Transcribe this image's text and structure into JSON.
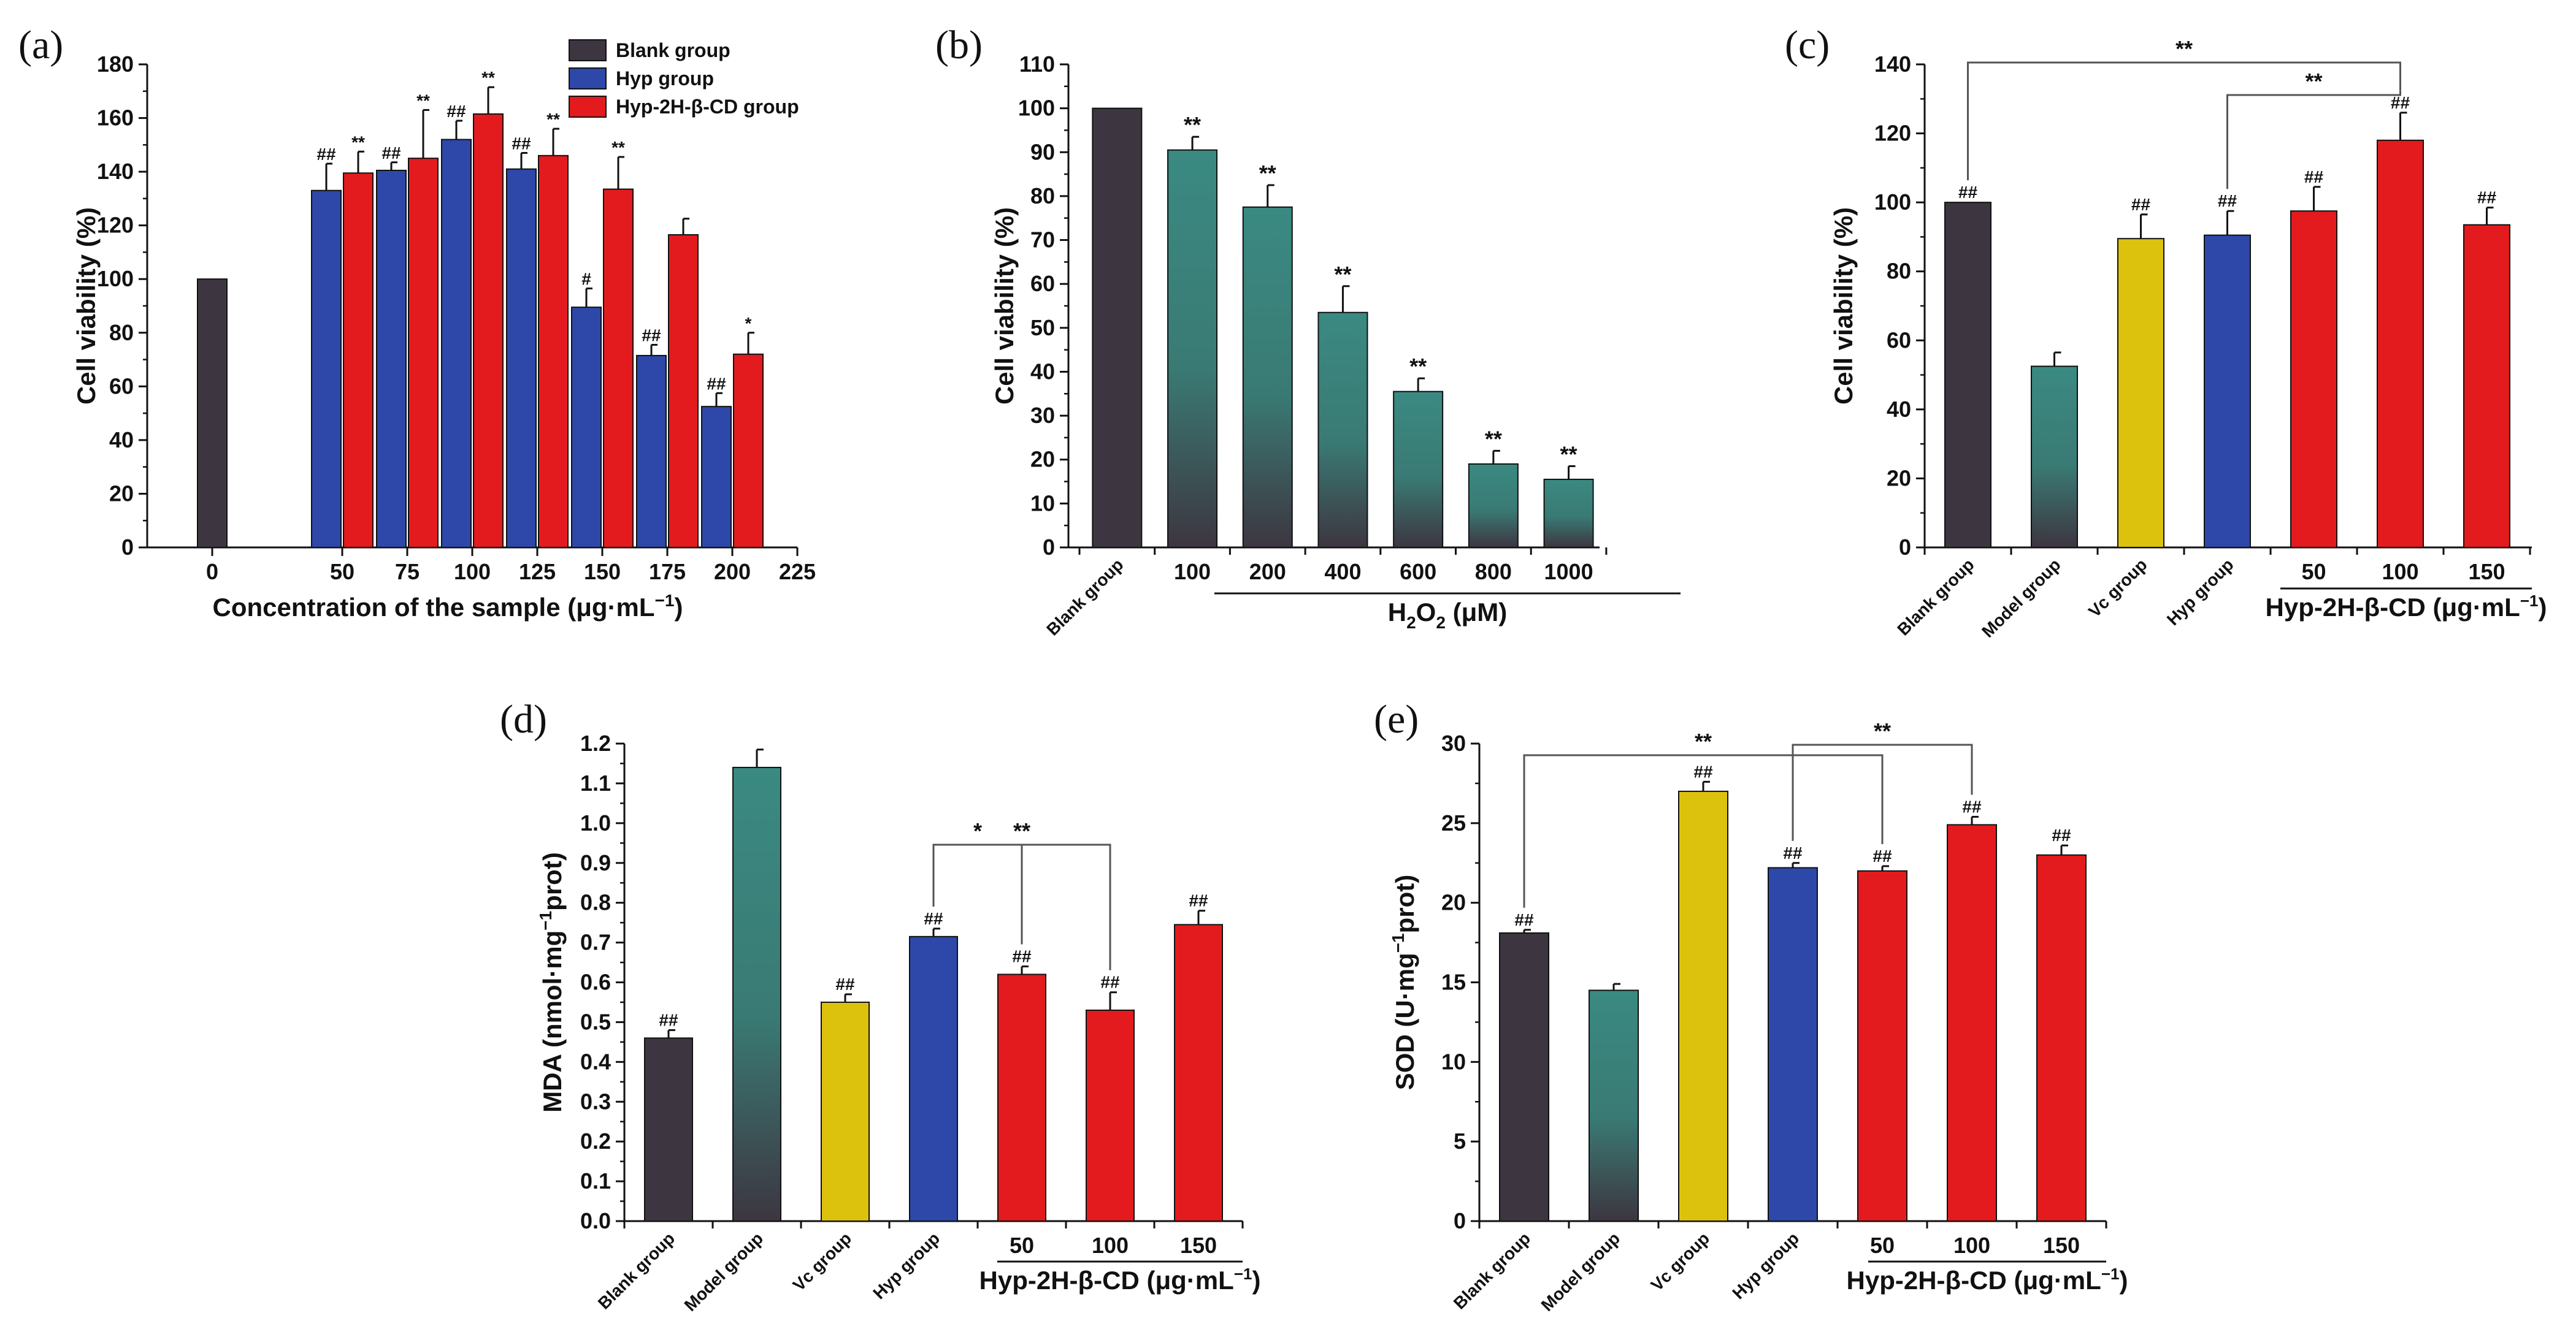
{
  "colors": {
    "blank": "#3d3640",
    "hyp": "#2d48a8",
    "hypcd": "#e31b1e",
    "vc": "#ddc20d",
    "teal_top": "#3a8a82",
    "teal_bottom": "#3d3640"
  },
  "chart_data": [
    {
      "id": "a",
      "panel_label": "(a)",
      "type": "bar",
      "title": "",
      "xlabel": "Concentration of the sample (μg·mL",
      "xlabel_sup": "−1",
      "xlabel_end": ")",
      "ylabel": "Cell viability (%)",
      "ylim": [
        0,
        180
      ],
      "yticks": [
        "0",
        "20",
        "40",
        "60",
        "80",
        "100",
        "120",
        "140",
        "160",
        "180"
      ],
      "xlim": [
        -25,
        225
      ],
      "xticks": [
        "0",
        "50",
        "75",
        "100",
        "125",
        "150",
        "175",
        "200",
        "225"
      ],
      "legend": [
        "Blank group",
        "Hyp group",
        "Hyp-2H-β-CD group"
      ],
      "series": [
        {
          "name": "Blank group",
          "x": [
            0
          ],
          "values": [
            100
          ],
          "errors": [
            0
          ],
          "sig": [
            ""
          ]
        },
        {
          "name": "Hyp group",
          "x": [
            50,
            75,
            100,
            125,
            150,
            175,
            200
          ],
          "values": [
            133,
            140.5,
            152,
            141,
            89.5,
            71.5,
            52.5
          ],
          "errors": [
            10,
            3,
            7,
            6,
            7,
            4,
            5
          ],
          "sig": [
            "##",
            "##",
            "##",
            "##",
            "#",
            "##",
            "##"
          ]
        },
        {
          "name": "Hyp-2H-β-CD group",
          "x": [
            50,
            75,
            100,
            125,
            150,
            175,
            200
          ],
          "values": [
            139.5,
            145,
            161.5,
            146,
            133.5,
            116.5,
            72
          ],
          "errors": [
            8,
            18,
            10,
            10,
            12,
            6,
            8
          ],
          "sig": [
            "**",
            "**",
            "**",
            "**",
            "**",
            "",
            "*"
          ]
        }
      ]
    },
    {
      "id": "b",
      "panel_label": "(b)",
      "type": "bar",
      "title": "",
      "xlabel": "H",
      "xlabel_sub": "2",
      "xlabel_mid": "O",
      "xlabel_sub2": "2",
      "xlabel_end": " (μM)",
      "ylabel": "Cell viability (%)",
      "ylim": [
        0,
        110
      ],
      "yticks": [
        "0",
        "10",
        "20",
        "30",
        "40",
        "50",
        "60",
        "70",
        "80",
        "90",
        "100",
        "110"
      ],
      "categories": [
        "Blank group",
        "100",
        "200",
        "400",
        "600",
        "800",
        "1000"
      ],
      "values": [
        100,
        90.5,
        77.5,
        53.5,
        35.5,
        19,
        15.5
      ],
      "errors": [
        0,
        3,
        5,
        6,
        3,
        3,
        3
      ],
      "sig": [
        "",
        "**",
        "**",
        "**",
        "**",
        "**",
        "**"
      ],
      "bar_styles": [
        "blank",
        "teal",
        "teal",
        "teal",
        "teal",
        "teal",
        "teal"
      ]
    },
    {
      "id": "c",
      "panel_label": "(c)",
      "type": "bar",
      "title": "",
      "xlabel": "Hyp-2H-β-CD (μg·mL",
      "xlabel_sup": "−1",
      "xlabel_end": ")",
      "ylabel": "Cell viability (%)",
      "ylim": [
        0,
        140
      ],
      "yticks": [
        "0",
        "20",
        "40",
        "60",
        "80",
        "100",
        "120",
        "140"
      ],
      "categories": [
        "Blank group",
        "Model group",
        "Vc group",
        "Hyp group",
        "50",
        "100",
        "150"
      ],
      "values": [
        100,
        52.5,
        89.5,
        90.5,
        97.5,
        118,
        93.5
      ],
      "errors": [
        0,
        4,
        7,
        7,
        7,
        8,
        5
      ],
      "sig": [
        "##",
        "",
        "##",
        "##",
        "##",
        "##",
        "##"
      ],
      "bar_styles": [
        "blank",
        "teal",
        "vc",
        "hyp",
        "hypcd",
        "hypcd",
        "hypcd"
      ],
      "comparisons": [
        {
          "from": 0,
          "to": 5,
          "label": "**"
        },
        {
          "from": 3,
          "to": 5,
          "label": "**"
        }
      ]
    },
    {
      "id": "d",
      "panel_label": "(d)",
      "type": "bar",
      "title": "",
      "xlabel": "Hyp-2H-β-CD (μg·mL",
      "xlabel_sup": "−1",
      "xlabel_end": ")",
      "ylabel": "MDA (nmol·mg",
      "ylabel_sup": "−1",
      "ylabel_end": "prot)",
      "ylim": [
        0,
        1.2
      ],
      "yticks": [
        "0.0",
        "0.1",
        "0.2",
        "0.3",
        "0.4",
        "0.5",
        "0.6",
        "0.7",
        "0.8",
        "0.9",
        "1.0",
        "1.1",
        "1.2"
      ],
      "categories": [
        "Blank group",
        "Model group",
        "Vc group",
        "Hyp group",
        "50",
        "100",
        "150"
      ],
      "values": [
        0.46,
        1.14,
        0.55,
        0.715,
        0.62,
        0.53,
        0.745
      ],
      "errors": [
        0.02,
        0.045,
        0.02,
        0.02,
        0.02,
        0.045,
        0.035
      ],
      "sig": [
        "##",
        "",
        "##",
        "##",
        "##",
        "##",
        "##"
      ],
      "bar_styles": [
        "blank",
        "teal",
        "vc",
        "hyp",
        "hypcd",
        "hypcd",
        "hypcd"
      ],
      "comparisons": [
        {
          "from": 3,
          "to": 4,
          "label": "*"
        },
        {
          "from": 3,
          "to": 5,
          "label": "**"
        }
      ]
    },
    {
      "id": "e",
      "panel_label": "(e)",
      "type": "bar",
      "title": "",
      "xlabel": "Hyp-2H-β-CD (μg·mL",
      "xlabel_sup": "−1",
      "xlabel_end": ")",
      "ylabel": "SOD (U·mg",
      "ylabel_sup": "−1",
      "ylabel_end": "prot)",
      "ylim": [
        0,
        30
      ],
      "yticks": [
        "0",
        "5",
        "10",
        "15",
        "20",
        "25",
        "30"
      ],
      "categories": [
        "Blank group",
        "Model group",
        "Vc group",
        "Hyp group",
        "50",
        "100",
        "150"
      ],
      "values": [
        18.1,
        14.5,
        27,
        22.2,
        22,
        24.9,
        23
      ],
      "errors": [
        0.2,
        0.4,
        0.6,
        0.3,
        0.3,
        0.5,
        0.6
      ],
      "sig": [
        "##",
        "",
        "##",
        "##",
        "##",
        "##",
        "##"
      ],
      "bar_styles": [
        "blank",
        "teal",
        "vc",
        "hyp",
        "hypcd",
        "hypcd",
        "hypcd"
      ],
      "comparisons": [
        {
          "from": 0,
          "to": 4,
          "label": "**"
        },
        {
          "from": 3,
          "to": 5,
          "label": "**"
        }
      ]
    }
  ]
}
